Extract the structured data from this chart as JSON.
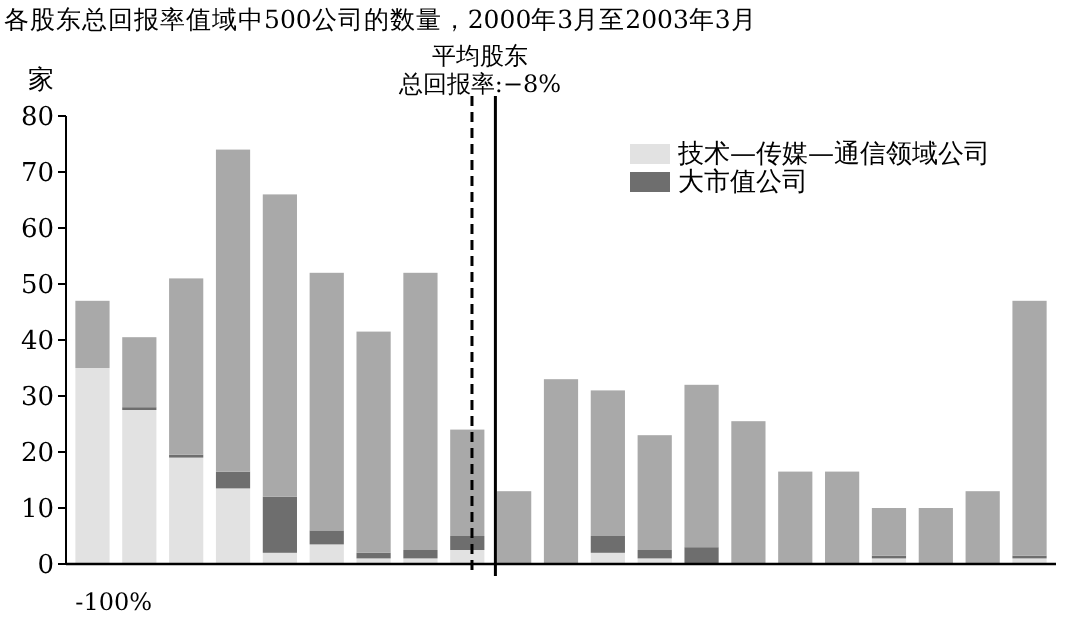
{
  "chart_data": {
    "type": "bar",
    "title": "各股东总回报率值域中500公司的数量，2000年3月至2003年3月",
    "ylabel": "家",
    "stacked": true,
    "categories": [
      null,
      null,
      null,
      null,
      null,
      null,
      null,
      null,
      null,
      null,
      null,
      null,
      null,
      null,
      null,
      null,
      null,
      null,
      null,
      null,
      null
    ],
    "series": [
      {
        "name": "技术—传媒—通信领域公司",
        "color": "#e2e2e2",
        "values": [
          35,
          27.5,
          19,
          13.5,
          2,
          3.5,
          1,
          1,
          2.5,
          0,
          0,
          2,
          1,
          0,
          0,
          0,
          0,
          1,
          0,
          0,
          1
        ]
      },
      {
        "name": "大市值公司",
        "color": "#6e6e6e",
        "values": [
          0,
          0.5,
          0.5,
          3,
          10,
          2.5,
          1,
          1.5,
          2.5,
          0,
          0,
          3,
          1.5,
          3,
          0,
          0,
          0,
          0.5,
          0,
          0,
          0.5
        ]
      },
      {
        "color": "#a9a9a9",
        "values": [
          12,
          12.5,
          31.5,
          57.5,
          54,
          46,
          39.5,
          49.5,
          19,
          13,
          33,
          26,
          20.5,
          29,
          25.5,
          16.5,
          16.5,
          8.5,
          10,
          13,
          45.5
        ]
      }
    ],
    "ylim": [
      0,
      80
    ],
    "yticks": [
      0,
      10,
      20,
      30,
      40,
      50,
      60,
      70,
      80
    ],
    "grid": false,
    "legend": "top right",
    "annotations": [
      "平均股东总回报率:−8%",
      "-100%"
    ]
  }
}
